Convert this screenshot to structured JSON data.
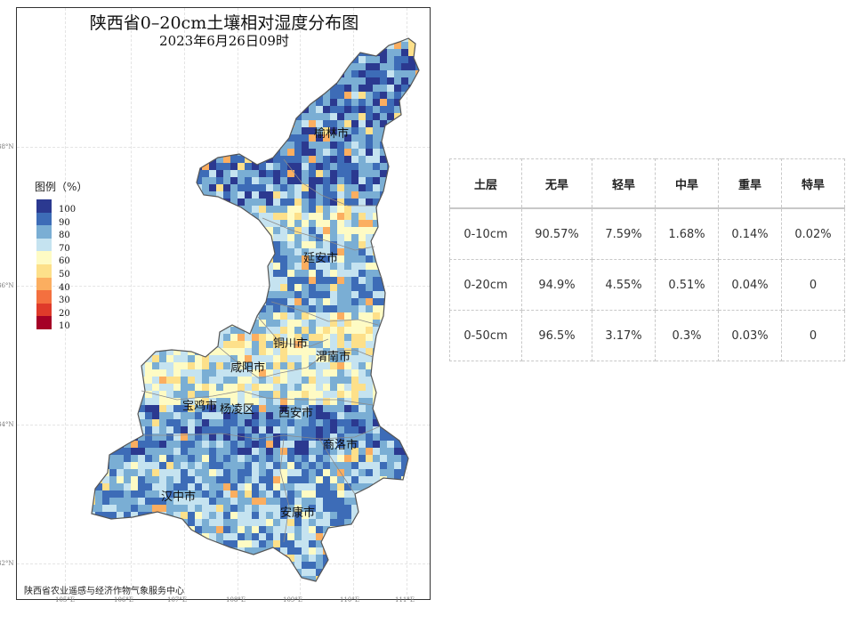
{
  "map": {
    "title": "陕西省0–20cm土壤相对湿度分布图",
    "subtitle": "2023年6月26日09时",
    "credit": "陕西省农业遥感与经济作物气象服务中心",
    "legend": {
      "title": "图例（%）",
      "items": [
        {
          "label": "100",
          "color": "#2b3990"
        },
        {
          "label": "90",
          "color": "#3d6cb7"
        },
        {
          "label": "80",
          "color": "#7aaed4"
        },
        {
          "label": "70",
          "color": "#c5e3f0"
        },
        {
          "label": "60",
          "color": "#fefbc4"
        },
        {
          "label": "50",
          "color": "#fde08a"
        },
        {
          "label": "40",
          "color": "#fbae60"
        },
        {
          "label": "30",
          "color": "#f4703f"
        },
        {
          "label": "20",
          "color": "#df3a2a"
        },
        {
          "label": "10",
          "color": "#a50026"
        }
      ]
    },
    "cities": [
      "榆林市",
      "延安市",
      "铜川市",
      "渭南市",
      "咸阳市",
      "宝鸡市",
      "杨凌区",
      "西安市",
      "商洛市",
      "汉中市",
      "安康市"
    ],
    "x_ticks": [
      "105°E",
      "106°E",
      "107°E",
      "108°E",
      "109°E",
      "110°E",
      "111°E"
    ],
    "y_ticks": [
      "38°N",
      "36°N",
      "34°N",
      "32°N"
    ]
  },
  "table": {
    "headers": [
      "土层",
      "无旱",
      "轻旱",
      "中旱",
      "重旱",
      "特旱"
    ],
    "rows": [
      [
        "0-10cm",
        "90.57%",
        "7.59%",
        "1.68%",
        "0.14%",
        "0.02%"
      ],
      [
        "0-20cm",
        "94.9%",
        "4.55%",
        "0.51%",
        "0.04%",
        "0"
      ],
      [
        "0-50cm",
        "96.5%",
        "3.17%",
        "0.3%",
        "0.03%",
        "0"
      ]
    ]
  }
}
